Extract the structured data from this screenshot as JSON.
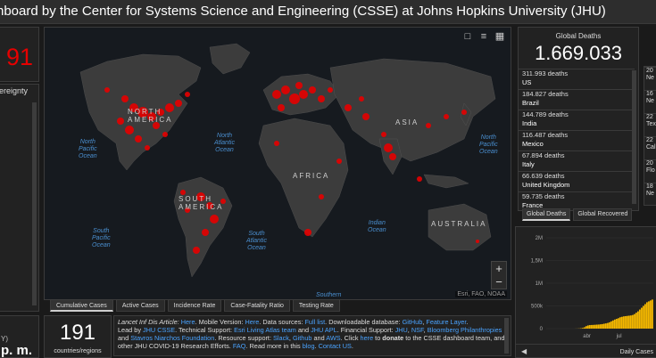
{
  "header": {
    "title": "hboard by the Center for Systems Science and Engineering (CSSE) at Johns Hopkins University (JHU)"
  },
  "left": {
    "total_partial": "91",
    "list_header": "ereignty",
    "bottom_small": "Y)",
    "bottom_time": "p. m."
  },
  "map": {
    "tools": [
      "bookmark-icon",
      "list-icon",
      "grid-icon"
    ],
    "zoom_in": "+",
    "zoom_out": "−",
    "attribution": "Esri, FAO, NOAA",
    "labels": {
      "north_america": "NORTH\nAMERICA",
      "south_america": "SOUTH\nAMERICA",
      "africa": "AFRICA",
      "asia": "ASIA",
      "australia": "AUSTRALIA",
      "north_pacific_left": "North\nPacific\nOcean",
      "north_atlantic": "North\nAtlantic\nOcean",
      "north_pacific_right": "North\nPacific\nOcean",
      "south_pacific": "South\nPacific\nOcean",
      "south_atlantic": "South\nAtlantic\nOcean",
      "indian": "Indian\nOcean",
      "southern": "Southern"
    }
  },
  "tabs": [
    "Cumulative Cases",
    "Active Cases",
    "Incidence Rate",
    "Case-Fatality Ratio",
    "Testing Rate"
  ],
  "countries": {
    "count": "191",
    "label": "countries/regions"
  },
  "info": {
    "line1_a": "Lancet Inf Dis Article: ",
    "line1_here1": "Here",
    "line1_b": ". Mobile Version: ",
    "line1_here2": "Here",
    "line1_c": ". Data sources: ",
    "line1_full": "Full list",
    "line1_d": ". Downloadable database: ",
    "line1_github": "GitHub",
    "line1_e": ", ",
    "line1_feature": "Feature Layer",
    "line1_f": ".",
    "line2_a": "Lead by ",
    "line2_jhu": "JHU CSSE",
    "line2_b": ". Technical Support: ",
    "line2_esri": "Esri Living Atlas team",
    "line2_c": " and ",
    "line2_apl": "JHU APL",
    "line2_d": ". Financial Support: ",
    "line2_jhu2": "JHU",
    "line2_e": ", ",
    "line2_nsf": "NSF",
    "line2_f": ", ",
    "line2_bloomberg": "Bloomberg Philanthropies",
    "line3_a": "and ",
    "line3_stavros": "Stavros Niarchos Foundation",
    "line3_b": ". Resource support: ",
    "line3_slack": "Slack",
    "line3_c": ", ",
    "line3_github": "Github",
    "line3_d": " and ",
    "line3_aws": "AWS",
    "line3_e": ". Click ",
    "line3_here": "here",
    "line3_f": " to ",
    "line3_donate": "donate",
    "line3_g": " to the CSSE dashboard team, and",
    "line4_a": "other JHU COVID-19 Research Efforts. ",
    "line4_faq": "FAQ",
    "line4_b": ". Read more in this ",
    "line4_blog": "blog",
    "line4_c": ". ",
    "line4_contact": "Contact US",
    "line4_d": "."
  },
  "deaths": {
    "title": "Global Deaths",
    "total": "1.669.033",
    "rows": [
      {
        "n": "311.993 deaths",
        "c": "US"
      },
      {
        "n": "184.827 deaths",
        "c": "Brazil"
      },
      {
        "n": "144.789 deaths",
        "c": "India"
      },
      {
        "n": "116.487 deaths",
        "c": "Mexico"
      },
      {
        "n": "67.894 deaths",
        "c": "Italy"
      },
      {
        "n": "66.639 deaths",
        "c": "United Kingdom"
      },
      {
        "n": "59.735 deaths",
        "c": "France"
      }
    ],
    "tab_active": "Global Deaths",
    "tab_other": "Global Recovered"
  },
  "right_list": [
    {
      "a": "20",
      "b": "Ne"
    },
    {
      "a": "16",
      "b": "Ne",
      "c": "rec"
    },
    {
      "a": "22",
      "b": "Tex"
    },
    {
      "a": "22",
      "b": "Cal"
    },
    {
      "a": "20",
      "b": "Flo"
    },
    {
      "a": "18",
      "b": "Ne"
    },
    {
      "a": "16",
      "b": "Illi"
    },
    {
      "a": "13",
      "b": ""
    }
  ],
  "chart_data": {
    "type": "bar",
    "title": "Daily Cases",
    "y_tick_labels": [
      "2M",
      "1,5M",
      "1M",
      "500k",
      "0"
    ],
    "x_tick_labels": [
      "abr",
      "jul"
    ],
    "ylim": [
      0,
      2000000
    ],
    "values": [
      0,
      0,
      0,
      0,
      0,
      0,
      0,
      0,
      0,
      0,
      0,
      0,
      0,
      0,
      0,
      0,
      1000,
      2000,
      4000,
      8000,
      15000,
      30000,
      55000,
      70000,
      78000,
      80000,
      82000,
      85000,
      88000,
      90000,
      95000,
      100000,
      108000,
      115000,
      125000,
      140000,
      160000,
      180000,
      200000,
      215000,
      230000,
      250000,
      260000,
      270000,
      275000,
      280000,
      285000,
      290000,
      300000,
      320000,
      350000,
      380000,
      420000,
      460000,
      500000,
      540000,
      580000,
      600000,
      620000,
      640000
    ],
    "bar_color": "#f5b800",
    "footer_arrow": "◀"
  },
  "colors": {
    "accent_red": "#e60000",
    "link": "#4aa3ff",
    "bar": "#f5b800"
  }
}
